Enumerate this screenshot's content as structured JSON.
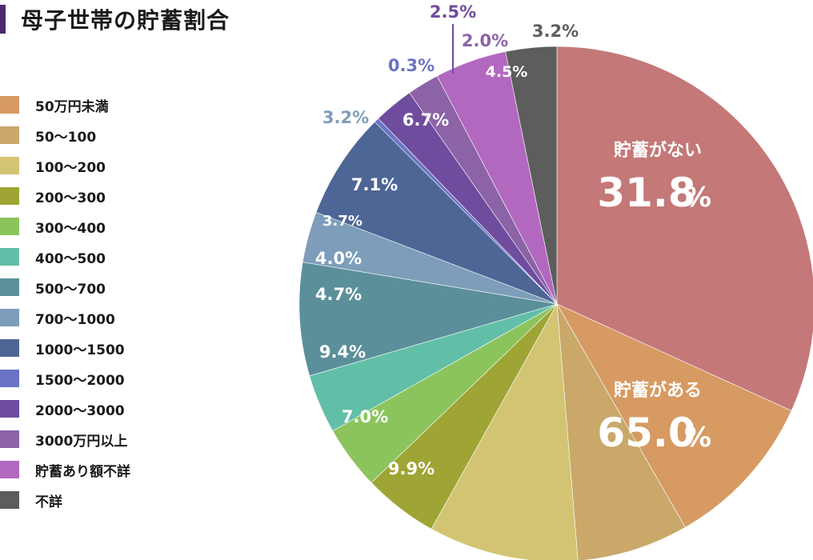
{
  "title": "母子世帯の貯蓄割合",
  "chart_data": {
    "type": "pie",
    "slices": [
      {
        "label": "貯蓄がない",
        "value": 31.8,
        "color": "#c47878"
      },
      {
        "label": "50万円未満",
        "value": 9.9,
        "color": "#d69a62"
      },
      {
        "label": "50～100",
        "value": 7.0,
        "color": "#c9a86a"
      },
      {
        "label": "100～200",
        "value": 9.4,
        "color": "#d3c474"
      },
      {
        "label": "200～300",
        "value": 4.7,
        "color": "#9ea534"
      },
      {
        "label": "300～400",
        "value": 4.0,
        "color": "#8bc45c"
      },
      {
        "label": "400～500",
        "value": 3.7,
        "color": "#62bfa7"
      },
      {
        "label": "500～700",
        "value": 7.1,
        "color": "#5b8f9a"
      },
      {
        "label": "700～1000",
        "value": 3.2,
        "color": "#7d9dbb"
      },
      {
        "label": "1000～1500",
        "value": 6.7,
        "color": "#4e6696"
      },
      {
        "label": "1500～2000",
        "value": 0.3,
        "color": "#6b74c4"
      },
      {
        "label": "2000～3000",
        "value": 2.5,
        "color": "#6f4c9e"
      },
      {
        "label": "3000万円以上",
        "value": 2.0,
        "color": "#8b63a6"
      },
      {
        "label": "貯蓄あり額不詳",
        "value": 4.5,
        "color": "#b268bf"
      },
      {
        "label": "不詳",
        "value": 3.2,
        "color": "#5d5d5d"
      }
    ],
    "slice_labels": [
      "9.9%",
      "7.0%",
      "9.4%",
      "4.7%",
      "4.0%",
      "3.7%",
      "7.1%",
      "3.2%",
      "6.7%",
      "0.3%",
      "2.5%",
      "2.0%",
      "4.5%",
      "3.2%"
    ],
    "groups": [
      {
        "label": "貯蓄がない",
        "value": "31.8",
        "unit": "%"
      },
      {
        "label": "貯蓄がある",
        "value": "65.0",
        "unit": "%",
        "color": "#d9805c"
      }
    ],
    "legend": [
      "50万円未満",
      "50～100",
      "100～200",
      "200～300",
      "300～400",
      "400～500",
      "500～700",
      "700～1000",
      "1000～1500",
      "1500～2000",
      "2000～3000",
      "3000万円以上",
      "貯蓄あり額不詳",
      "不詳"
    ],
    "legend_placement": "left"
  }
}
